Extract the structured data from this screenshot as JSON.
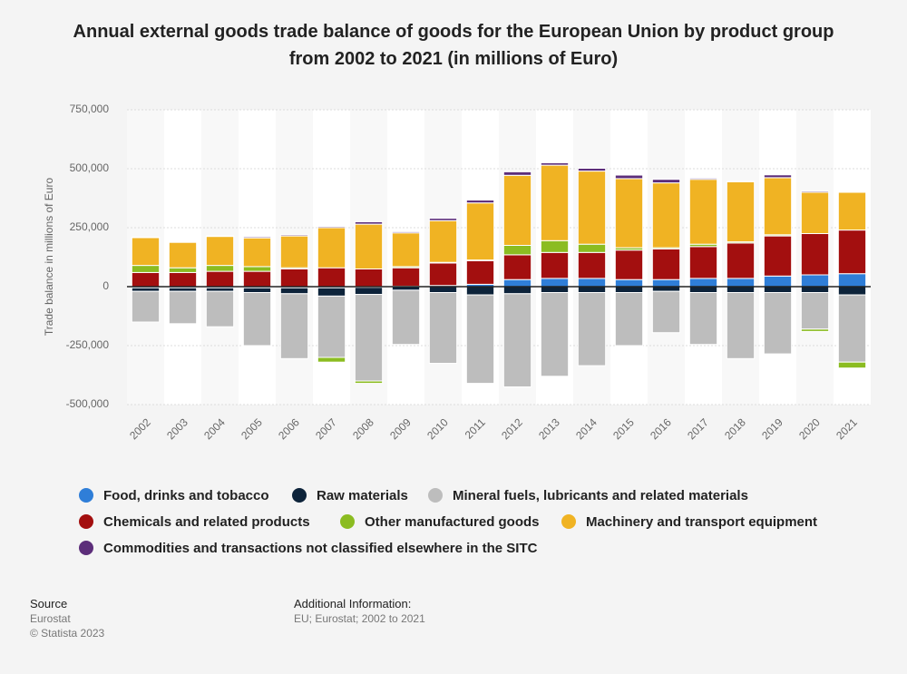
{
  "chart_data": {
    "type": "stacked-bar",
    "title": "Annual external goods trade balance of goods for the European Union by product group from 2002 to 2021 (in millions of Euro)",
    "y_label": "Trade balance in millions of Euro",
    "categories": [
      "2002",
      "2003",
      "2004",
      "2005",
      "2006",
      "2007",
      "2008",
      "2009",
      "2010",
      "2011",
      "2012",
      "2013",
      "2014",
      "2015",
      "2016",
      "2017",
      "2018",
      "2019",
      "2020",
      "2021"
    ],
    "ylim": [
      -500000,
      750000
    ],
    "yticks": [
      {
        "value": 750000,
        "label": "750,000"
      },
      {
        "value": 500000,
        "label": "500,000"
      },
      {
        "value": 250000,
        "label": "250,000"
      },
      0,
      {
        "value": -250000,
        "label": "-250,000"
      },
      {
        "value": -500000,
        "label": "-500,000"
      }
    ],
    "series": [
      {
        "name": "Food, drinks and tobacco",
        "color": "#2f7ed8",
        "values": [
          -5000,
          -5000,
          -5000,
          -5000,
          -5000,
          -5000,
          -3000,
          2000,
          5000,
          10000,
          30000,
          35000,
          35000,
          30000,
          30000,
          35000,
          35000,
          45000,
          50000,
          55000
        ]
      },
      {
        "name": "Raw materials",
        "color": "#0d233a",
        "values": [
          -15000,
          -15000,
          -15000,
          -20000,
          -25000,
          -35000,
          -30000,
          -15000,
          -25000,
          -35000,
          -30000,
          -25000,
          -25000,
          -25000,
          -20000,
          -25000,
          -25000,
          -25000,
          -25000,
          -35000
        ]
      },
      {
        "name": "Mineral fuels, lubricants and related materials",
        "color": "#bdbdbd",
        "values": [
          -130000,
          -137000,
          -150000,
          -225000,
          -275000,
          -260000,
          -367000,
          -230000,
          -300000,
          -375000,
          -395000,
          -355000,
          -310000,
          -225000,
          -175000,
          -220000,
          -280000,
          -260000,
          -155000,
          -285000
        ]
      },
      {
        "name": "Chemicals and related products",
        "color": "#a30f0f",
        "values": [
          60000,
          60000,
          65000,
          65000,
          75000,
          80000,
          75000,
          78000,
          95000,
          100000,
          105000,
          110000,
          110000,
          125000,
          130000,
          135000,
          150000,
          170000,
          175000,
          185000
        ]
      },
      {
        "name": "Other manufactured goods",
        "color": "#8bbc21",
        "values": [
          30000,
          20000,
          25000,
          20000,
          5000,
          -20000,
          -10000,
          5000,
          3000,
          3000,
          40000,
          50000,
          35000,
          10000,
          5000,
          10000,
          5000,
          5000,
          -10000,
          -25000
        ]
      },
      {
        "name": "Machinery and transport equipment",
        "color": "#f0b323",
        "values": [
          118000,
          108000,
          123000,
          122000,
          135000,
          170000,
          190000,
          143000,
          177000,
          242000,
          297000,
          320000,
          310000,
          293000,
          275000,
          275000,
          255000,
          242000,
          175000,
          160000
        ]
      },
      {
        "name": "Commodities and transactions not classified elsewhere in the SITC",
        "color": "#5c2d7a",
        "values": [
          2000,
          2000,
          2000,
          5000,
          5000,
          5000,
          10000,
          5000,
          10000,
          12000,
          15000,
          10000,
          12000,
          15000,
          15000,
          5000,
          2000,
          12000,
          5000,
          2000
        ]
      }
    ]
  },
  "footer": {
    "source_title": "Source",
    "source": "Eurostat",
    "copyright": "© Statista 2023",
    "info_title": "Additional Information:",
    "info": "EU; Eurostat; 2002 to 2021"
  }
}
